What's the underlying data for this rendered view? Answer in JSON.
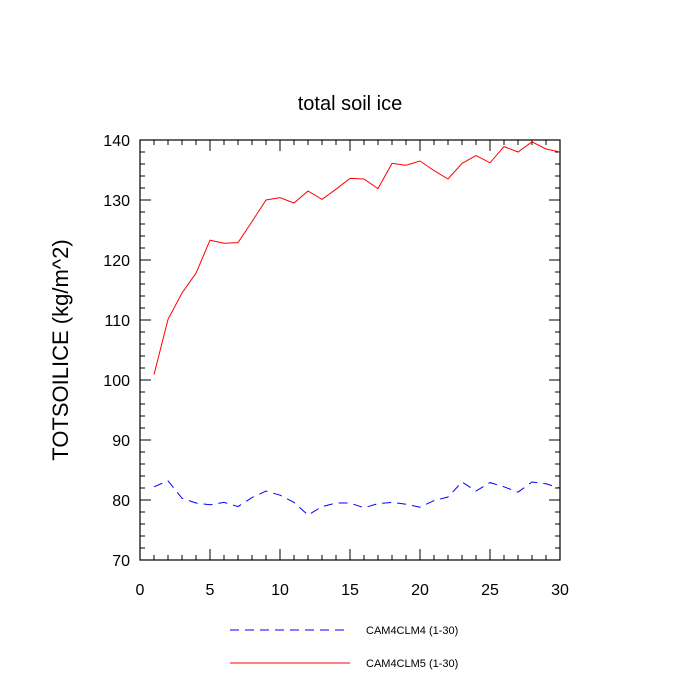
{
  "chart_data": {
    "type": "line",
    "title": "total soil ice",
    "xlabel": "",
    "ylabel": "TOTSOILICE  (kg/m^2)",
    "xlim": [
      0,
      30
    ],
    "ylim": [
      70,
      140
    ],
    "x_ticks": [
      "0",
      "5",
      "10",
      "15",
      "20",
      "25",
      "30"
    ],
    "y_ticks": [
      "70",
      "80",
      "90",
      "100",
      "110",
      "120",
      "130",
      "140"
    ],
    "grid": false,
    "legend_position": "bottom",
    "x": [
      1,
      2,
      3,
      4,
      5,
      6,
      7,
      8,
      9,
      10,
      11,
      12,
      13,
      14,
      15,
      16,
      17,
      18,
      19,
      20,
      21,
      22,
      23,
      24,
      25,
      26,
      27,
      28,
      29,
      30
    ],
    "series": [
      {
        "name": "CAM4CLM4 (1-30)",
        "color": "#0000ff",
        "style": "dashed",
        "values": [
          82.2,
          83.2,
          80.3,
          79.5,
          79.2,
          79.6,
          78.9,
          80.4,
          81.5,
          80.8,
          79.6,
          77.5,
          78.9,
          79.5,
          79.5,
          78.7,
          79.4,
          79.6,
          79.3,
          78.8,
          79.9,
          80.5,
          83.0,
          81.5,
          82.9,
          82.2,
          81.3,
          83.0,
          82.7,
          82.0
        ]
      },
      {
        "name": "CAM4CLM5 (1-30)",
        "color": "#ff0000",
        "style": "solid",
        "values": [
          100.9,
          110.1,
          114.5,
          117.8,
          123.3,
          122.8,
          122.9,
          126.4,
          130.0,
          130.4,
          129.5,
          131.5,
          130.1,
          131.8,
          133.6,
          133.5,
          131.9,
          136.1,
          135.8,
          136.5,
          134.9,
          133.5,
          136.1,
          137.4,
          136.2,
          138.9,
          138.0,
          139.7,
          138.5,
          138.0
        ]
      }
    ]
  }
}
